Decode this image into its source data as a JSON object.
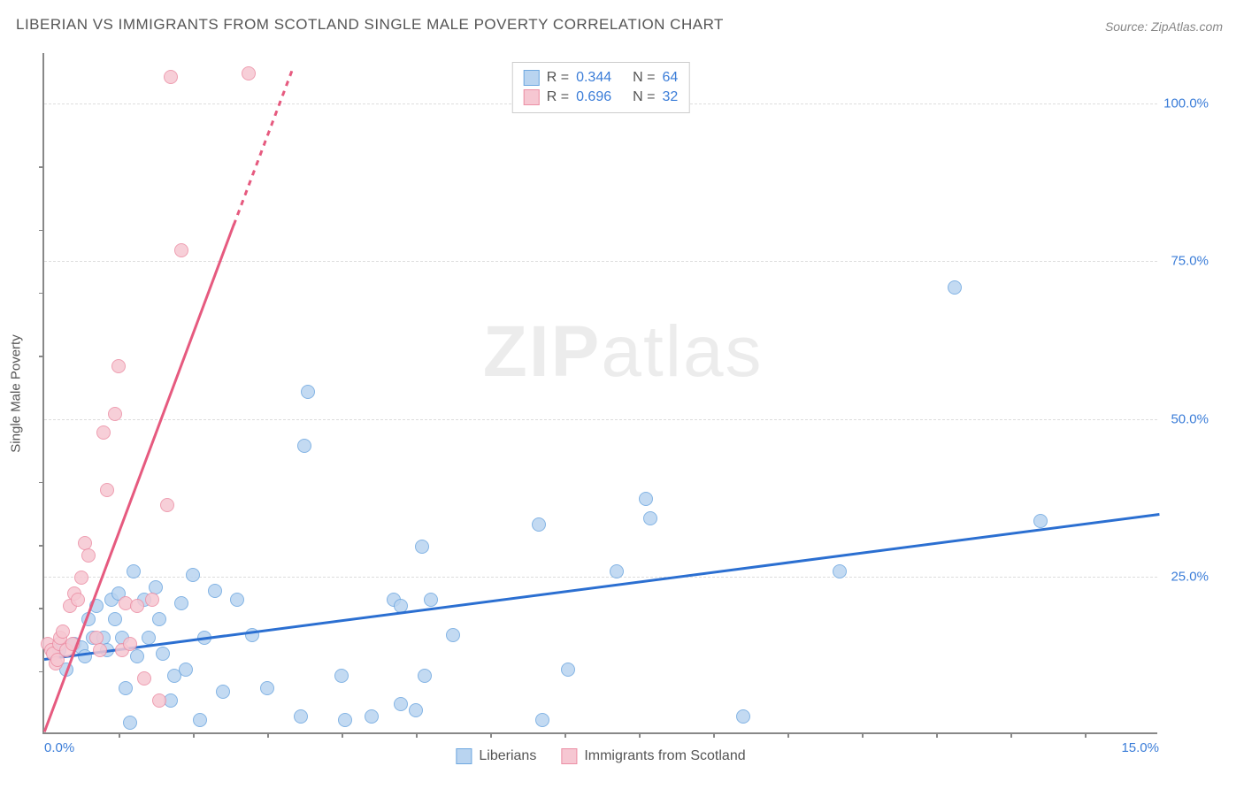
{
  "title": "LIBERIAN VS IMMIGRANTS FROM SCOTLAND SINGLE MALE POVERTY CORRELATION CHART",
  "source": "Source: ZipAtlas.com",
  "watermark_bold": "ZIP",
  "watermark_light": "atlas",
  "y_axis_label": "Single Male Poverty",
  "chart": {
    "type": "scatter",
    "xlim": [
      0,
      15
    ],
    "ylim": [
      0,
      108
    ],
    "background_color": "#ffffff",
    "grid_color": "#dddddd",
    "axis_color": "#888888",
    "y_gridlines": [
      25,
      50,
      75,
      100
    ],
    "y_tick_labels": [
      "25.0%",
      "50.0%",
      "75.0%",
      "100.0%"
    ],
    "x_tick_labels": {
      "left": "0.0%",
      "right": "15.0%"
    },
    "x_minor_ticks": [
      1,
      2,
      3,
      4,
      5,
      6,
      7,
      8,
      9,
      10,
      11,
      12,
      13,
      14
    ],
    "y_minor_ticks": [
      10,
      20,
      30,
      40,
      60,
      70,
      80,
      90
    ],
    "series": [
      {
        "name": "Liberians",
        "fill": "#b9d4f0",
        "stroke": "#6fa8e0",
        "line_color": "#2b6fd1",
        "R": "0.344",
        "N": "64",
        "trend": {
          "x1": 0,
          "y1": 12.0,
          "x2": 15,
          "y2": 35.0
        },
        "points": [
          [
            0.2,
            13
          ],
          [
            0.3,
            10
          ],
          [
            0.4,
            14
          ],
          [
            0.5,
            13.5
          ],
          [
            0.55,
            12
          ],
          [
            0.6,
            18
          ],
          [
            0.65,
            15
          ],
          [
            0.7,
            20
          ],
          [
            0.8,
            15
          ],
          [
            0.85,
            13
          ],
          [
            0.9,
            21
          ],
          [
            0.95,
            18
          ],
          [
            1.0,
            22
          ],
          [
            1.05,
            15
          ],
          [
            1.1,
            7
          ],
          [
            1.15,
            1.5
          ],
          [
            1.2,
            25.5
          ],
          [
            1.25,
            12
          ],
          [
            1.35,
            21
          ],
          [
            1.4,
            15
          ],
          [
            1.5,
            23
          ],
          [
            1.55,
            18
          ],
          [
            1.6,
            12.5
          ],
          [
            1.7,
            5
          ],
          [
            1.75,
            9
          ],
          [
            1.85,
            20.5
          ],
          [
            1.9,
            10
          ],
          [
            2.0,
            25
          ],
          [
            2.1,
            2
          ],
          [
            2.15,
            15
          ],
          [
            2.3,
            22.5
          ],
          [
            2.4,
            6.5
          ],
          [
            2.6,
            21
          ],
          [
            2.8,
            15.5
          ],
          [
            3.0,
            7
          ],
          [
            3.45,
            2.5
          ],
          [
            3.5,
            45.5
          ],
          [
            3.55,
            54
          ],
          [
            4.0,
            9
          ],
          [
            4.05,
            2
          ],
          [
            4.4,
            2.5
          ],
          [
            4.7,
            21
          ],
          [
            4.8,
            20
          ],
          [
            4.8,
            4.5
          ],
          [
            5.0,
            3.5
          ],
          [
            5.08,
            29.5
          ],
          [
            5.12,
            9
          ],
          [
            5.2,
            21
          ],
          [
            5.5,
            15.5
          ],
          [
            6.65,
            33
          ],
          [
            6.7,
            2
          ],
          [
            7.05,
            10
          ],
          [
            7.7,
            25.5
          ],
          [
            8.1,
            37
          ],
          [
            8.15,
            34
          ],
          [
            9.4,
            2.5
          ],
          [
            10.7,
            25.5
          ],
          [
            12.25,
            70.5
          ],
          [
            13.4,
            33.5
          ]
        ]
      },
      {
        "name": "Immigrants from Scotland",
        "fill": "#f6c7d2",
        "stroke": "#ec8fa5",
        "line_color": "#e65a7f",
        "R": "0.696",
        "N": "32",
        "trend": {
          "x1": 0,
          "y1": 0.5,
          "x2": 2.55,
          "y2": 81
        },
        "trend_dash": {
          "x1": 2.55,
          "y1": 81,
          "x2": 3.35,
          "y2": 106
        },
        "points": [
          [
            0.05,
            14
          ],
          [
            0.1,
            13
          ],
          [
            0.12,
            12.5
          ],
          [
            0.15,
            11
          ],
          [
            0.18,
            11.5
          ],
          [
            0.2,
            14
          ],
          [
            0.22,
            15
          ],
          [
            0.25,
            16
          ],
          [
            0.3,
            13
          ],
          [
            0.35,
            20
          ],
          [
            0.38,
            14
          ],
          [
            0.4,
            22
          ],
          [
            0.45,
            21
          ],
          [
            0.5,
            24.5
          ],
          [
            0.55,
            30
          ],
          [
            0.6,
            28
          ],
          [
            0.7,
            15
          ],
          [
            0.75,
            13
          ],
          [
            0.8,
            47.5
          ],
          [
            0.85,
            38.5
          ],
          [
            0.95,
            50.5
          ],
          [
            1.0,
            58
          ],
          [
            1.05,
            13
          ],
          [
            1.1,
            20.5
          ],
          [
            1.15,
            14
          ],
          [
            1.25,
            20
          ],
          [
            1.35,
            8.5
          ],
          [
            1.45,
            21
          ],
          [
            1.55,
            5
          ],
          [
            1.65,
            36
          ],
          [
            1.7,
            104
          ],
          [
            1.85,
            76.5
          ],
          [
            2.75,
            104.5
          ]
        ]
      }
    ]
  },
  "legend_top": [
    {
      "swatch_fill": "#b9d4f0",
      "swatch_stroke": "#6fa8e0",
      "r_label": "R =",
      "r_val": "0.344",
      "n_label": "N =",
      "n_val": "64"
    },
    {
      "swatch_fill": "#f6c7d2",
      "swatch_stroke": "#ec8fa5",
      "r_label": "R =",
      "r_val": "0.696",
      "n_label": "N =",
      "n_val": "32"
    }
  ],
  "legend_bottom": [
    {
      "swatch_fill": "#b9d4f0",
      "swatch_stroke": "#6fa8e0",
      "label": "Liberians"
    },
    {
      "swatch_fill": "#f6c7d2",
      "swatch_stroke": "#ec8fa5",
      "label": "Immigrants from Scotland"
    }
  ]
}
